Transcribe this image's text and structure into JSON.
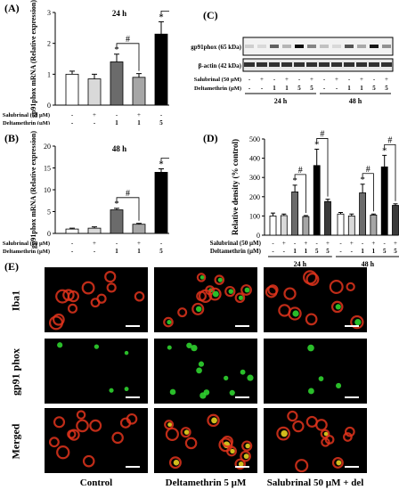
{
  "panels": {
    "A": {
      "label": "(A)"
    },
    "B": {
      "label": "(B)"
    },
    "C": {
      "label": "(C)"
    },
    "D": {
      "label": "(D)"
    },
    "E": {
      "label": "(E)"
    }
  },
  "blot": {
    "bands": [
      "gp91phox (65 kDa)",
      "β-actin (42 kDa)"
    ],
    "groups": [
      "24 h",
      "48 h"
    ]
  },
  "treatments": {
    "salubrinal_label": "Salubrinal (50 µM)",
    "deltamethrin_label": "Deltamethrin (µM)",
    "salubrinal": [
      "-",
      "+",
      "-",
      "+",
      "-",
      "+"
    ],
    "deltamethrin": [
      "-",
      "-",
      "1",
      "1",
      "5",
      "5"
    ]
  },
  "significance": {
    "star": "*",
    "hash": "#"
  },
  "micrographs": {
    "rows": [
      "Iba1",
      "gp91 phox",
      "Merged"
    ],
    "cols": [
      "Control",
      "Deltamethrin 5 µM",
      "Salubrinal 50 µM + del"
    ]
  },
  "colors": {
    "bar_fills": [
      "#ffffff",
      "#d9d9d9",
      "#6b6b6b",
      "#a6a6a6",
      "#000000",
      "#3a3a3a"
    ],
    "iba1": "#e0341c",
    "gp91": "#2fd22f"
  },
  "chart_data": [
    {
      "type": "bar",
      "title": "24 h",
      "ylabel": "gp91phox mRNA (Relative expression)",
      "ylim": [
        0,
        3
      ],
      "yticks": [
        "0",
        "1",
        "2",
        "3"
      ],
      "categories": [
        "-/-",
        "+/-",
        "-/1",
        "+/1",
        "-/5",
        "+/5"
      ],
      "values": [
        1.0,
        0.85,
        1.4,
        0.9,
        2.3,
        1.3
      ],
      "errors": [
        0.1,
        0.15,
        0.25,
        0.12,
        0.4,
        0.35
      ],
      "stars": [
        2,
        4
      ],
      "brackets": [
        [
          2,
          3
        ],
        [
          4,
          5
        ]
      ]
    },
    {
      "type": "bar",
      "title": "48 h",
      "ylabel": "gp91phox mRNA (Relative expression)",
      "ylim": [
        0,
        20
      ],
      "yticks": [
        "0",
        "5",
        "10",
        "15",
        "20"
      ],
      "categories": [
        "-/-",
        "+/-",
        "-/1",
        "+/1",
        "-/5",
        "+/5"
      ],
      "values": [
        1.0,
        1.2,
        5.4,
        2.1,
        14.0,
        3.2
      ],
      "errors": [
        0.2,
        0.3,
        0.35,
        0.2,
        0.8,
        0.9
      ],
      "stars": [
        2,
        4
      ],
      "brackets": [
        [
          2,
          3
        ],
        [
          4,
          5
        ]
      ]
    },
    {
      "type": "bar",
      "ylabel": "Relative density (% control)",
      "ylim": [
        0,
        500
      ],
      "yticks": [
        "0",
        "100",
        "200",
        "300",
        "400",
        "500"
      ],
      "groups": [
        "24 h",
        "48 h"
      ],
      "categories": [
        "-/-",
        "+/-",
        "-/1",
        "+/1",
        "-/5",
        "+/5"
      ],
      "series": [
        {
          "values": [
            100,
            102,
            225,
            97,
            362,
            175
          ],
          "errors": [
            15,
            8,
            35,
            5,
            85,
            12
          ]
        },
        {
          "values": [
            110,
            100,
            220,
            105,
            355,
            155
          ],
          "errors": [
            8,
            10,
            45,
            5,
            60,
            8
          ]
        }
      ],
      "stars": [
        2,
        4
      ],
      "brackets": [
        [
          2,
          3
        ],
        [
          4,
          5
        ]
      ]
    }
  ]
}
